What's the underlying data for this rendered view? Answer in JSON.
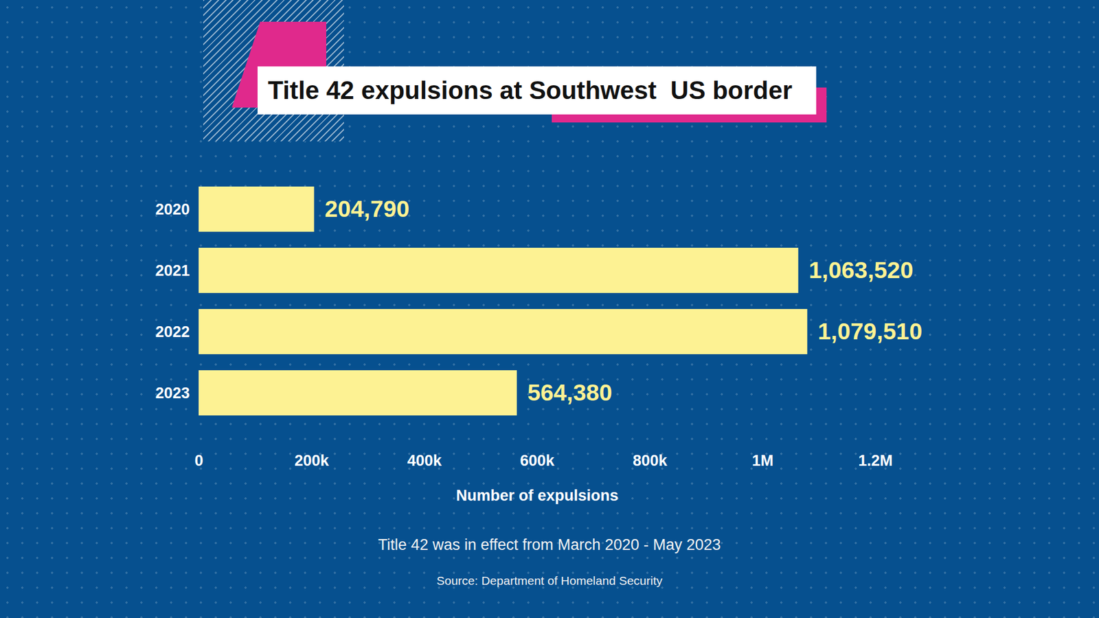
{
  "chart_data": {
    "type": "bar",
    "orientation": "horizontal",
    "title": "Title 42 expulsions at Southwest  US border",
    "categories": [
      "2020",
      "2021",
      "2022",
      "2023"
    ],
    "values": [
      204790,
      1063520,
      1079510,
      564380
    ],
    "value_labels": [
      "204,790",
      "1,063,520",
      "1,079,510",
      "564,380"
    ],
    "data_labels": true,
    "color": "#fdf293",
    "xlabel": "Number of expulsions",
    "xlim": [
      0,
      1200000
    ],
    "xticks": [
      0,
      {
        "value": 200000,
        "label": "200k"
      },
      {
        "value": 400000,
        "label": "400k"
      },
      {
        "value": 600000,
        "label": "600k"
      },
      {
        "value": 800000,
        "label": "800k"
      },
      {
        "value": 1000000,
        "label": "1M"
      },
      {
        "value": 1200000,
        "label": "1.2M"
      }
    ],
    "grid": false,
    "caption": "Title 42 was in effect from March 2020 - May 2023",
    "source": "Source: Department of Homeland Security"
  }
}
